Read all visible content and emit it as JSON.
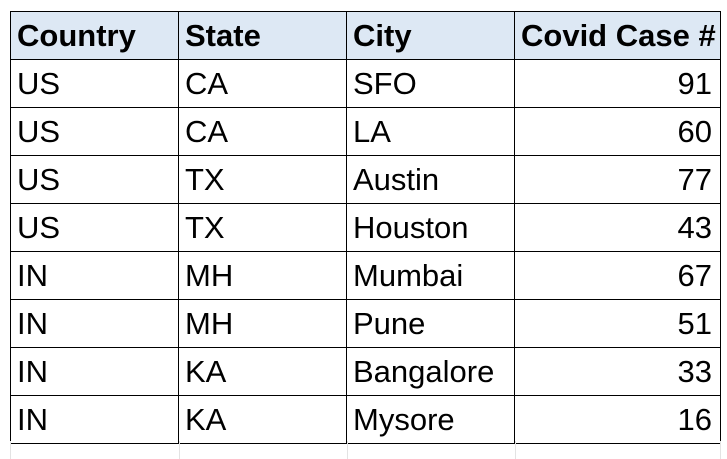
{
  "table": {
    "headers": {
      "country": "Country",
      "state": "State",
      "city": "City",
      "cases": "Covid Case #"
    },
    "rows": [
      {
        "country": "US",
        "state": "CA",
        "city": "SFO",
        "cases": "91"
      },
      {
        "country": "US",
        "state": "CA",
        "city": "LA",
        "cases": "60"
      },
      {
        "country": "US",
        "state": "TX",
        "city": "Austin",
        "cases": "77"
      },
      {
        "country": "US",
        "state": "TX",
        "city": "Houston",
        "cases": "43"
      },
      {
        "country": "IN",
        "state": "MH",
        "city": "Mumbai",
        "cases": "67"
      },
      {
        "country": "IN",
        "state": "MH",
        "city": "Pune",
        "cases": "51"
      },
      {
        "country": "IN",
        "state": "KA",
        "city": "Bangalore",
        "cases": "33"
      },
      {
        "country": "IN",
        "state": "KA",
        "city": "Mysore",
        "cases": "16"
      }
    ]
  },
  "colors": {
    "header_fill": "#dde8f4",
    "border": "#000000",
    "gridline": "#e3e3e3"
  }
}
